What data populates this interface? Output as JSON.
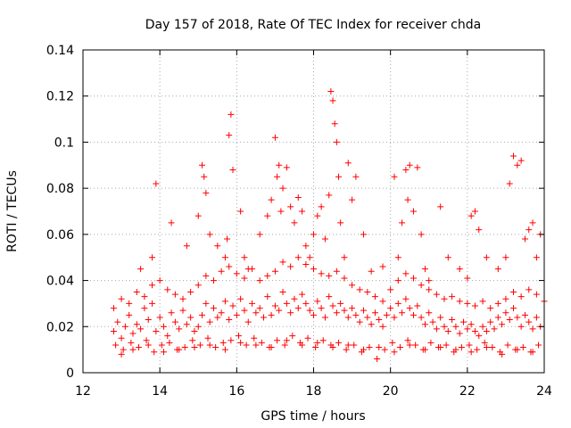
{
  "chart_data": {
    "type": "scatter",
    "title": "Day 157 of 2018, Rate Of TEC Index for receiver chda",
    "xlabel": "GPS time / hours",
    "ylabel": "ROTI / TECUs",
    "xlim": [
      12,
      24
    ],
    "ylim": [
      0,
      0.14
    ],
    "xticks": [
      12,
      14,
      16,
      18,
      20,
      22,
      24
    ],
    "xtick_labels": [
      "12",
      "14",
      "16",
      "18",
      "20",
      "22",
      "24"
    ],
    "yticks": [
      0,
      0.02,
      0.04,
      0.06,
      0.08,
      0.1,
      0.12,
      0.14
    ],
    "ytick_labels": [
      "0",
      "0.02",
      "0.04",
      "0.06",
      "0.08",
      "0.1",
      "0.12",
      "0.14"
    ],
    "grid": true,
    "marker": "+",
    "series": [
      {
        "name": "ROTI",
        "color": "#ff0000",
        "x": [
          12.8,
          12.9,
          13.0,
          13.1,
          13.2,
          13.3,
          13.4,
          13.5,
          13.6,
          13.7,
          13.8,
          13.9,
          14.0,
          14.1,
          14.2,
          14.3,
          14.4,
          14.5,
          14.6,
          14.7,
          14.8,
          14.9,
          15.0,
          15.1,
          15.2,
          15.3,
          15.4,
          15.5,
          15.6,
          15.7,
          15.8,
          15.9,
          16.0,
          16.1,
          16.2,
          16.3,
          16.4,
          16.5,
          16.6,
          16.7,
          16.8,
          16.9,
          17.0,
          17.1,
          17.2,
          17.3,
          17.4,
          17.5,
          17.6,
          17.7,
          17.8,
          17.9,
          18.0,
          18.1,
          18.2,
          18.3,
          18.4,
          18.5,
          18.6,
          18.7,
          18.8,
          18.9,
          19.0,
          19.1,
          19.2,
          19.3,
          19.4,
          19.5,
          19.6,
          19.7,
          19.8,
          19.9,
          20.0,
          20.1,
          20.2,
          20.3,
          20.4,
          20.5,
          20.6,
          20.7,
          20.8,
          20.9,
          21.0,
          21.1,
          21.2,
          21.3,
          21.4,
          21.5,
          21.6,
          21.7,
          21.8,
          21.9,
          22.0,
          22.1,
          22.2,
          22.3,
          22.4,
          22.5,
          22.6,
          22.7,
          22.8,
          22.9,
          23.0,
          23.1,
          23.2,
          23.3,
          23.4,
          23.5,
          23.6,
          23.7,
          23.8,
          23.9,
          12.85,
          13.05,
          13.25,
          13.45,
          13.65,
          13.85,
          14.05,
          14.25,
          14.45,
          14.65,
          14.85,
          15.05,
          15.25,
          15.45,
          15.65,
          15.85,
          16.05,
          16.25,
          16.45,
          16.65,
          16.85,
          17.05,
          17.25,
          17.45,
          17.65,
          17.85,
          18.05,
          18.25,
          18.45,
          18.65,
          18.85,
          19.05,
          19.25,
          19.45,
          19.65,
          19.85,
          20.05,
          20.25,
          20.45,
          20.65,
          20.85,
          21.05,
          21.25,
          21.45,
          21.65,
          21.85,
          22.05,
          22.25,
          22.45,
          22.65,
          22.85,
          23.05,
          23.25,
          23.45,
          23.65,
          23.85,
          12.8,
          13.0,
          13.2,
          13.4,
          13.6,
          13.8,
          14.0,
          14.2,
          14.4,
          14.6,
          14.8,
          15.0,
          15.2,
          15.4,
          15.6,
          15.8,
          16.0,
          16.2,
          16.4,
          16.6,
          16.8,
          17.0,
          17.2,
          17.4,
          17.6,
          17.8,
          18.0,
          18.2,
          18.4,
          18.6,
          18.8,
          19.0,
          19.2,
          19.4,
          19.6,
          19.8,
          20.0,
          20.2,
          20.4,
          20.6,
          20.8,
          21.0,
          21.2,
          21.4,
          21.6,
          21.8,
          22.0,
          22.2,
          22.4,
          22.6,
          22.8,
          23.0,
          23.2,
          23.4,
          23.6,
          23.8,
          24.0,
          13.5,
          13.8,
          13.9,
          14.3,
          14.7,
          15.0,
          15.1,
          15.15,
          15.2,
          15.3,
          15.5,
          15.7,
          15.75,
          15.8,
          15.85,
          15.9,
          16.1,
          16.2,
          16.3,
          16.6,
          16.8,
          16.9,
          17.0,
          17.05,
          17.1,
          17.15,
          17.2,
          17.3,
          17.4,
          17.5,
          17.6,
          17.7,
          17.8,
          17.9,
          18.0,
          18.1,
          18.2,
          18.3,
          18.4,
          18.45,
          18.5,
          18.55,
          18.6,
          18.65,
          18.7,
          18.8,
          18.9,
          19.0,
          19.1,
          19.3,
          19.5,
          19.8,
          20.1,
          20.2,
          20.3,
          20.4,
          20.45,
          20.5,
          20.6,
          20.7,
          20.8,
          20.9,
          21.0,
          21.3,
          21.5,
          21.8,
          22.0,
          22.1,
          22.2,
          22.3,
          22.5,
          22.8,
          23.0,
          23.1,
          23.2,
          23.3,
          23.4,
          23.5,
          23.6,
          23.7,
          23.8,
          23.9,
          13.0,
          13.3,
          13.7,
          14.1,
          14.5,
          14.9,
          15.3,
          15.7,
          16.1,
          16.5,
          16.9,
          17.3,
          17.7,
          18.1,
          18.5,
          18.9,
          19.3,
          19.7,
          20.1,
          20.5,
          20.9,
          21.3,
          21.7,
          22.1,
          22.5,
          22.9,
          23.3,
          23.7
        ],
        "y": [
          0.018,
          0.022,
          0.015,
          0.02,
          0.025,
          0.017,
          0.021,
          0.019,
          0.028,
          0.023,
          0.03,
          0.018,
          0.024,
          0.02,
          0.016,
          0.026,
          0.022,
          0.019,
          0.027,
          0.021,
          0.024,
          0.018,
          0.02,
          0.025,
          0.03,
          0.022,
          0.028,
          0.024,
          0.026,
          0.031,
          0.023,
          0.029,
          0.025,
          0.032,
          0.027,
          0.022,
          0.03,
          0.026,
          0.028,
          0.024,
          0.033,
          0.025,
          0.029,
          0.027,
          0.035,
          0.03,
          0.026,
          0.032,
          0.028,
          0.034,
          0.03,
          0.027,
          0.025,
          0.031,
          0.028,
          0.024,
          0.033,
          0.029,
          0.026,
          0.03,
          0.027,
          0.024,
          0.028,
          0.025,
          0.022,
          0.027,
          0.024,
          0.021,
          0.026,
          0.023,
          0.02,
          0.025,
          0.028,
          0.024,
          0.03,
          0.026,
          0.032,
          0.028,
          0.025,
          0.029,
          0.024,
          0.021,
          0.026,
          0.022,
          0.019,
          0.024,
          0.02,
          0.018,
          0.023,
          0.02,
          0.017,
          0.022,
          0.019,
          0.021,
          0.018,
          0.016,
          0.02,
          0.018,
          0.022,
          0.019,
          0.024,
          0.021,
          0.026,
          0.023,
          0.028,
          0.024,
          0.02,
          0.025,
          0.022,
          0.019,
          0.024,
          0.02,
          0.012,
          0.01,
          0.013,
          0.011,
          0.014,
          0.009,
          0.012,
          0.013,
          0.01,
          0.011,
          0.014,
          0.012,
          0.015,
          0.011,
          0.013,
          0.014,
          0.016,
          0.012,
          0.015,
          0.013,
          0.011,
          0.014,
          0.012,
          0.016,
          0.013,
          0.015,
          0.011,
          0.014,
          0.012,
          0.013,
          0.01,
          0.012,
          0.009,
          0.011,
          0.006,
          0.01,
          0.013,
          0.011,
          0.014,
          0.012,
          0.01,
          0.013,
          0.011,
          0.012,
          0.009,
          0.011,
          0.012,
          0.01,
          0.013,
          0.011,
          0.009,
          0.012,
          0.01,
          0.011,
          0.009,
          0.012,
          0.028,
          0.032,
          0.03,
          0.035,
          0.033,
          0.038,
          0.04,
          0.036,
          0.034,
          0.032,
          0.035,
          0.038,
          0.042,
          0.04,
          0.044,
          0.046,
          0.043,
          0.041,
          0.045,
          0.04,
          0.042,
          0.044,
          0.048,
          0.046,
          0.05,
          0.047,
          0.045,
          0.043,
          0.042,
          0.044,
          0.041,
          0.038,
          0.036,
          0.035,
          0.033,
          0.031,
          0.036,
          0.04,
          0.043,
          0.041,
          0.038,
          0.036,
          0.034,
          0.032,
          0.033,
          0.031,
          0.03,
          0.029,
          0.031,
          0.028,
          0.03,
          0.032,
          0.035,
          0.033,
          0.036,
          0.034,
          0.031,
          0.045,
          0.05,
          0.082,
          0.065,
          0.055,
          0.068,
          0.09,
          0.085,
          0.078,
          0.06,
          0.055,
          0.05,
          0.058,
          0.103,
          0.112,
          0.088,
          0.07,
          0.05,
          0.045,
          0.06,
          0.068,
          0.075,
          0.102,
          0.085,
          0.09,
          0.07,
          0.08,
          0.089,
          0.072,
          0.065,
          0.076,
          0.07,
          0.055,
          0.05,
          0.06,
          0.068,
          0.072,
          0.058,
          0.077,
          0.122,
          0.118,
          0.108,
          0.1,
          0.085,
          0.065,
          0.05,
          0.091,
          0.075,
          0.085,
          0.06,
          0.044,
          0.046,
          0.085,
          0.05,
          0.065,
          0.088,
          0.075,
          0.09,
          0.07,
          0.089,
          0.06,
          0.045,
          0.04,
          0.072,
          0.05,
          0.045,
          0.041,
          0.068,
          0.07,
          0.062,
          0.05,
          0.045,
          0.05,
          0.082,
          0.094,
          0.09,
          0.092,
          0.058,
          0.062,
          0.065,
          0.05,
          0.06,
          0.008,
          0.01,
          0.012,
          0.009,
          0.01,
          0.011,
          0.012,
          0.01,
          0.013,
          0.012,
          0.011,
          0.014,
          0.012,
          0.013,
          0.011,
          0.012,
          0.01,
          0.011,
          0.009,
          0.012,
          0.01,
          0.011,
          0.01,
          0.009,
          0.011,
          0.008,
          0.01,
          0.009
        ]
      }
    ]
  }
}
